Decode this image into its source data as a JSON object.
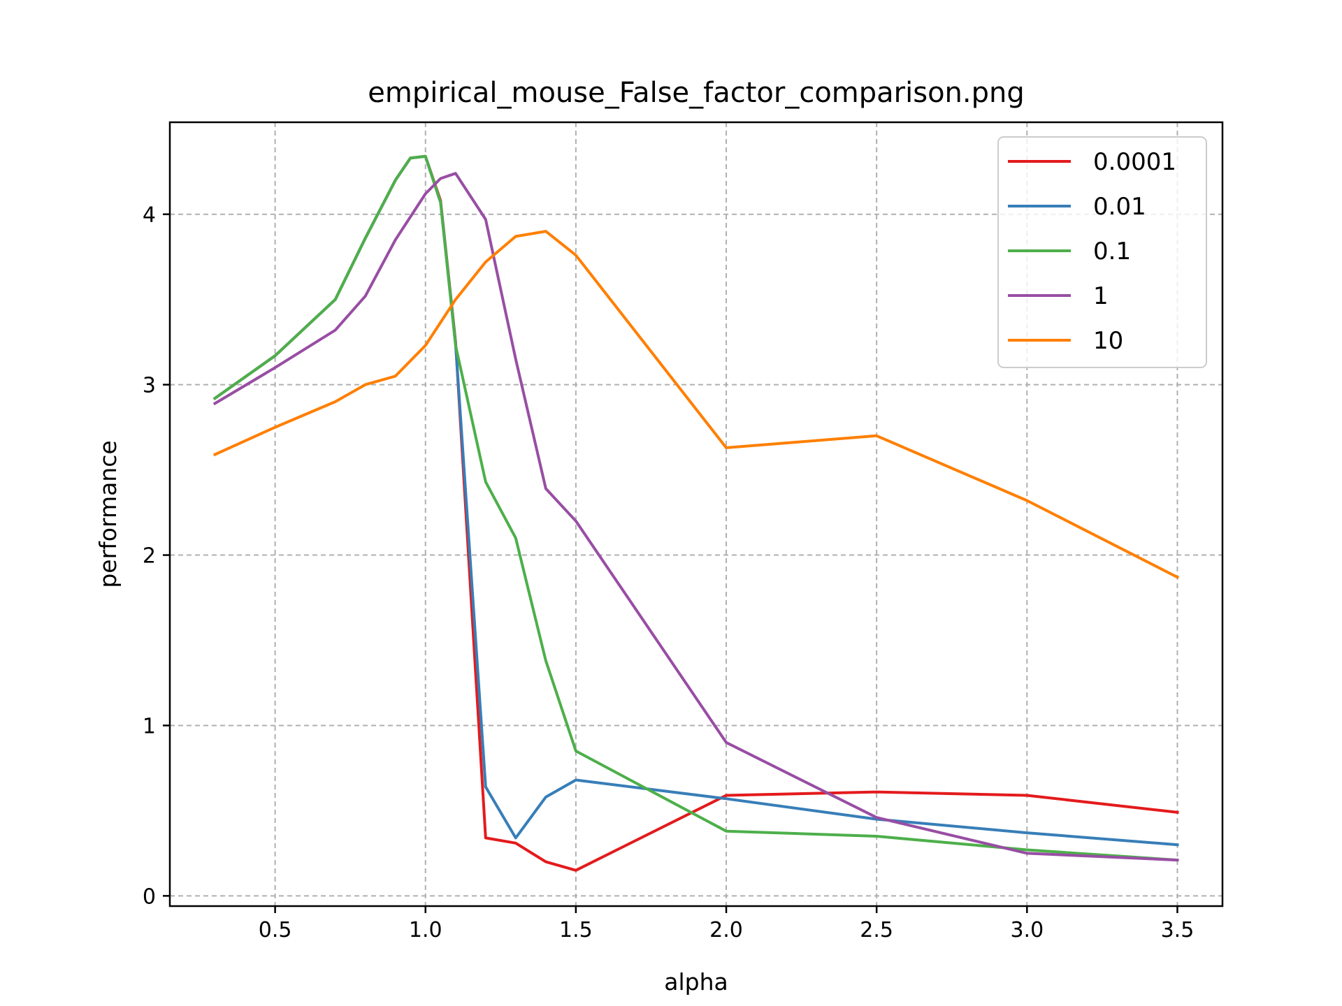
{
  "chart_data": {
    "type": "line",
    "title": "empirical_mouse_False_factor_comparison.png",
    "xlabel": "alpha",
    "ylabel": "performance",
    "xlim": [
      0.15,
      3.65
    ],
    "ylim": [
      -0.06,
      4.54
    ],
    "xticks": [
      0.5,
      1.0,
      1.5,
      2.0,
      2.5,
      3.0,
      3.5
    ],
    "xtick_labels": [
      "0.5",
      "1.0",
      "1.5",
      "2.0",
      "2.5",
      "3.0",
      "3.5"
    ],
    "yticks": [
      0,
      1,
      2,
      3,
      4
    ],
    "ytick_labels": [
      "0",
      "1",
      "2",
      "3",
      "4"
    ],
    "grid": true,
    "legend_position": "top-right",
    "series": [
      {
        "name": "0.0001",
        "color": "#e41a1c",
        "x": [
          0.3,
          0.5,
          0.7,
          0.8,
          0.9,
          0.95,
          1.0,
          1.05,
          1.1,
          1.2,
          1.3,
          1.4,
          1.5,
          2.0,
          2.5,
          3.0,
          3.5
        ],
        "y": [
          2.92,
          3.17,
          3.5,
          3.86,
          4.2,
          4.33,
          4.34,
          4.08,
          3.25,
          0.34,
          0.31,
          0.2,
          0.15,
          0.59,
          0.61,
          0.59,
          0.49
        ]
      },
      {
        "name": "0.01",
        "color": "#377eb8",
        "x": [
          0.3,
          0.5,
          0.7,
          0.8,
          0.9,
          0.95,
          1.0,
          1.05,
          1.1,
          1.2,
          1.3,
          1.4,
          1.5,
          2.0,
          2.5,
          3.0,
          3.5
        ],
        "y": [
          2.92,
          3.17,
          3.5,
          3.86,
          4.2,
          4.33,
          4.34,
          4.07,
          3.24,
          0.64,
          0.34,
          0.58,
          0.68,
          0.57,
          0.45,
          0.37,
          0.3
        ]
      },
      {
        "name": "0.1",
        "color": "#4daf4a",
        "x": [
          0.3,
          0.5,
          0.7,
          0.8,
          0.9,
          0.95,
          1.0,
          1.05,
          1.1,
          1.2,
          1.3,
          1.4,
          1.5,
          2.0,
          2.5,
          3.0,
          3.5
        ],
        "y": [
          2.92,
          3.17,
          3.5,
          3.86,
          4.2,
          4.33,
          4.34,
          4.07,
          3.23,
          2.43,
          2.1,
          1.38,
          0.85,
          0.38,
          0.35,
          0.27,
          0.21
        ]
      },
      {
        "name": "1",
        "color": "#984ea3",
        "x": [
          0.3,
          0.5,
          0.7,
          0.8,
          0.9,
          1.0,
          1.05,
          1.1,
          1.2,
          1.3,
          1.4,
          1.5,
          2.0,
          2.5,
          3.0,
          3.5
        ],
        "y": [
          2.89,
          3.1,
          3.32,
          3.52,
          3.85,
          4.12,
          4.21,
          4.24,
          3.97,
          3.15,
          2.39,
          2.2,
          0.9,
          0.46,
          0.25,
          0.21
        ]
      },
      {
        "name": "10",
        "color": "#ff7f00",
        "x": [
          0.3,
          0.5,
          0.7,
          0.8,
          0.9,
          1.0,
          1.1,
          1.2,
          1.3,
          1.4,
          1.5,
          2.0,
          2.5,
          3.0,
          3.5
        ],
        "y": [
          2.59,
          2.75,
          2.9,
          3.0,
          3.05,
          3.23,
          3.5,
          3.72,
          3.87,
          3.9,
          3.76,
          2.63,
          2.7,
          2.32,
          1.87
        ]
      }
    ]
  }
}
